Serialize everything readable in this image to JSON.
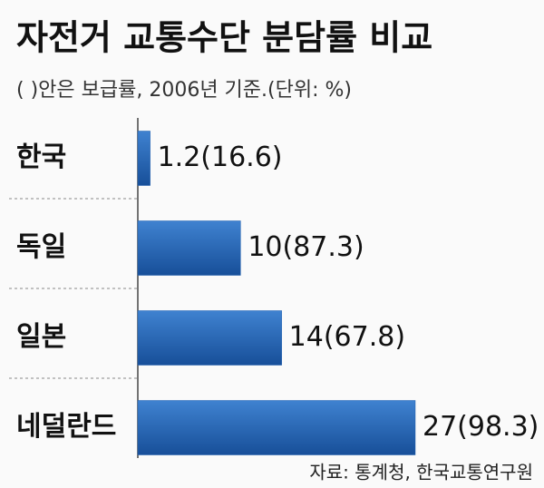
{
  "chart_data": {
    "type": "bar",
    "orientation": "horizontal",
    "title": "자전거 교통수단 분담률 비교",
    "subtitle": "( )안은 보급률, 2006년 기준.(단위: %)",
    "categories": [
      "한국",
      "독일",
      "일본",
      "네덜란드"
    ],
    "values": [
      1.2,
      10,
      14,
      27
    ],
    "value_labels": [
      "1.2(16.6)",
      "10(87.3)",
      "14(67.8)",
      "27(98.3)"
    ],
    "color": "#1f5fae",
    "source": "자료: 통계청, 한국교통연구원"
  }
}
